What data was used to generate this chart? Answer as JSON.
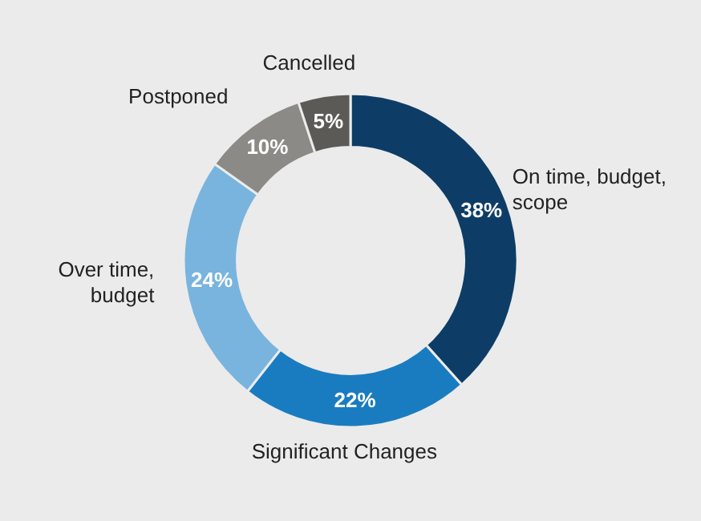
{
  "chart_data": {
    "type": "donut",
    "categories": [
      "On time, budget, scope",
      "Significant Changes",
      "Over time, budget",
      "Postponed",
      "Cancelled"
    ],
    "values": [
      38,
      22,
      24,
      10,
      5
    ],
    "colors": [
      "#0d3d66",
      "#1a7cc0",
      "#78b4de",
      "#8b8a86",
      "#5b5a56"
    ],
    "value_labels": [
      "38%",
      "22%",
      "24%",
      "10%",
      "5%"
    ]
  }
}
